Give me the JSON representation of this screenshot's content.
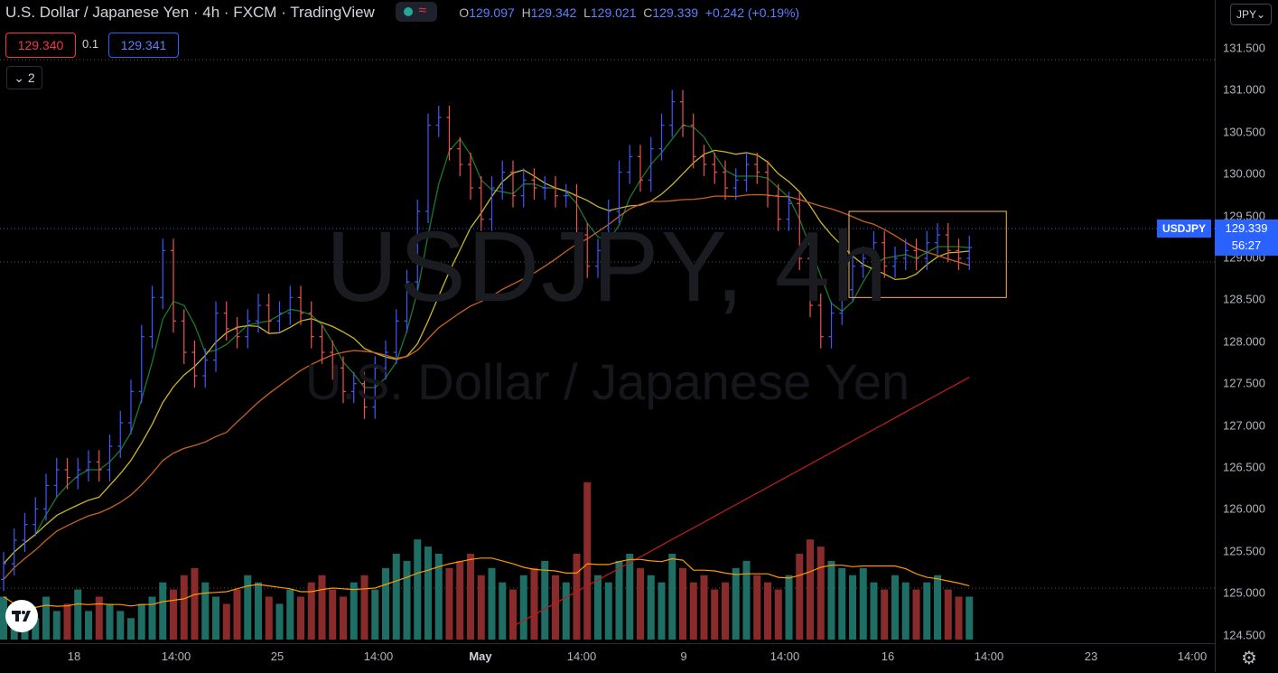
{
  "header": {
    "title": "U.S. Dollar / Japanese Yen · 4h · FXCM · TradingView",
    "ohlc": {
      "o_label": "O",
      "o": "129.097",
      "h_label": "H",
      "h": "129.342",
      "l_label": "L",
      "l": "129.021",
      "c_label": "C",
      "c": "129.339",
      "change": "+0.242 (+0.19%)"
    },
    "status_colors": {
      "market_open": "#26a69a",
      "data_alert": "#f23645"
    }
  },
  "trade": {
    "sell_price": "129.340",
    "spread": "0.1",
    "buy_price": "129.341"
  },
  "indicators_collapse_label": "2",
  "currency_button": "JPY",
  "symbol_label": "USDJPY",
  "last_price": "129.339",
  "countdown": "56:27",
  "watermark": {
    "symbol": "USDJPY, 4h",
    "description": "U.S. Dollar / Japanese Yen"
  },
  "colors": {
    "up": "#3d5afe",
    "down": "#ef5350",
    "vol_up": "#1f6e66",
    "vol_down": "#8a2b2b",
    "ma_green": "#1b7a2a",
    "ma_yellow": "#c9b52a",
    "ma_orange": "#c8631e",
    "ma_red": "#b71c1c",
    "vol_ma": "#ff9800",
    "accent": "#2962ff"
  },
  "chart_data": {
    "type": "candlestick",
    "y_axis_ticks": [
      "131.500",
      "131.000",
      "130.500",
      "130.000",
      "129.500",
      "129.000",
      "128.500",
      "128.000",
      "127.500",
      "127.000",
      "126.500",
      "126.000",
      "125.500",
      "125.000",
      "124.500"
    ],
    "x_axis_ticks": [
      {
        "label": "18",
        "bold": false
      },
      {
        "label": "14:00",
        "bold": false
      },
      {
        "label": "25",
        "bold": false
      },
      {
        "label": "14:00",
        "bold": false
      },
      {
        "label": "May",
        "bold": true
      },
      {
        "label": "14:00",
        "bold": false
      },
      {
        "label": "9",
        "bold": false
      },
      {
        "label": "14:00",
        "bold": false
      },
      {
        "label": "16",
        "bold": false
      },
      {
        "label": "14:00",
        "bold": false
      },
      {
        "label": "23",
        "bold": false
      },
      {
        "label": "14:00",
        "bold": false
      }
    ],
    "ylim": [
      124.4,
      131.9
    ],
    "price_path": [
      125.3,
      125.6,
      125.8,
      126.0,
      126.3,
      126.5,
      126.4,
      126.5,
      126.6,
      126.5,
      126.8,
      127.1,
      127.5,
      128.2,
      128.7,
      129.3,
      128.4,
      128.0,
      127.7,
      127.9,
      128.5,
      128.3,
      128.2,
      128.4,
      128.6,
      128.4,
      128.5,
      128.7,
      128.5,
      128.2,
      128.0,
      127.8,
      127.5,
      127.6,
      127.3,
      127.8,
      128.0,
      128.4,
      128.9,
      129.8,
      130.9,
      131.0,
      130.6,
      130.4,
      130.1,
      129.7,
      130.1,
      130.3,
      130.0,
      130.2,
      130.1,
      130.1,
      130.0,
      130.0,
      129.5,
      129.1,
      129.3,
      129.8,
      130.3,
      130.5,
      130.2,
      130.6,
      130.9,
      131.2,
      130.9,
      130.5,
      130.4,
      130.3,
      130.1,
      130.2,
      130.4,
      130.3,
      130.0,
      129.7,
      129.9,
      129.2,
      128.6,
      128.2,
      128.5,
      128.8,
      129.1,
      129.2,
      129.4,
      129.1,
      129.2,
      129.3,
      129.2,
      129.4,
      129.5,
      129.3,
      129.2,
      129.339
    ],
    "volume_path": [
      6,
      4,
      5,
      3,
      6,
      4,
      5,
      7,
      4,
      6,
      5,
      4,
      3,
      5,
      6,
      8,
      7,
      9,
      10,
      8,
      6,
      5,
      7,
      9,
      8,
      6,
      5,
      7,
      6,
      8,
      9,
      7,
      6,
      8,
      9,
      7,
      10,
      12,
      11,
      14,
      13,
      12,
      10,
      11,
      12,
      9,
      10,
      8,
      7,
      9,
      10,
      11,
      9,
      8,
      12,
      22,
      9,
      8,
      11,
      12,
      10,
      9,
      8,
      12,
      10,
      8,
      9,
      7,
      8,
      10,
      11,
      9,
      8,
      7,
      9,
      12,
      14,
      13,
      11,
      10,
      9,
      10,
      8,
      7,
      9,
      8,
      7,
      8,
      9,
      7,
      6,
      6
    ],
    "volume_max": 24,
    "highlight_box": {
      "from_index": 80,
      "to_index": 91,
      "low": 128.7,
      "high": 129.8
    }
  }
}
